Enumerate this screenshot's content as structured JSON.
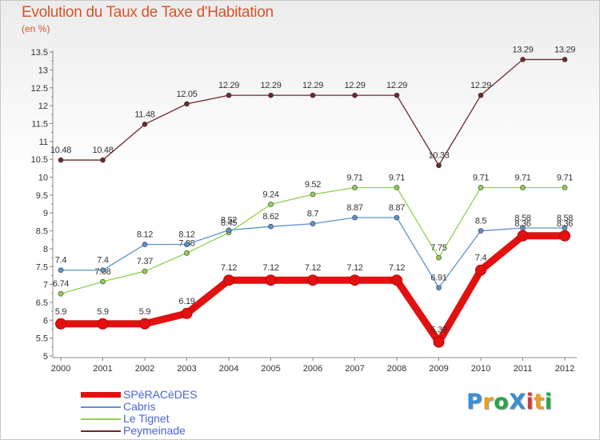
{
  "header": {
    "title": "Evolution du Taux de Taxe d'Habitation",
    "unit": "(en %)"
  },
  "logo": {
    "text": "ProXiti",
    "colors": [
      "#3a8fd4",
      "#e8a020",
      "#2aa44a",
      "#3a8fd4",
      "#d43a3a",
      "#e8a020",
      "#2aa44a"
    ]
  },
  "chart_data": {
    "type": "line",
    "title": "Evolution du Taux de Taxe d'Habitation",
    "ylabel": "(en %)",
    "xlabel": "",
    "x": [
      "2000",
      "2001",
      "2002",
      "2003",
      "2004",
      "2005",
      "2006",
      "2007",
      "2008",
      "2009",
      "2010",
      "2011",
      "2012"
    ],
    "ylim": [
      5,
      13.5
    ],
    "yticks": [
      "5",
      "5.5",
      "6",
      "6.5",
      "7",
      "7.5",
      "8",
      "8.5",
      "9",
      "9.5",
      "10",
      "10.5",
      "11",
      "11.5",
      "12",
      "12.5",
      "13",
      "13.5"
    ],
    "grid": false,
    "legend": "bottom-left",
    "series": [
      {
        "name": "SPéRACèDES",
        "color": "#e31010",
        "values": [
          5.9,
          5.9,
          5.9,
          6.19,
          7.12,
          7.12,
          7.12,
          7.12,
          7.12,
          5.39,
          7.4,
          8.36,
          8.36
        ],
        "labels": [
          "5.9",
          "5.9",
          "5.9",
          "6.19",
          "7.12",
          "7.12",
          "7.12",
          "7.12",
          "7.12",
          "5.39",
          "7.4",
          "8.36",
          "8.36"
        ]
      },
      {
        "name": "Cabris",
        "color": "#5b93cf",
        "values": [
          7.4,
          7.4,
          8.12,
          8.12,
          8.52,
          8.62,
          8.7,
          8.87,
          8.87,
          6.91,
          8.5,
          8.58,
          8.58
        ],
        "labels": [
          "7.4",
          "7.4",
          "8.12",
          "8.12",
          "8.52",
          "8.62",
          "8.7",
          "8.87",
          "8.87",
          "6.91",
          "8.5",
          "8.58",
          "8.58"
        ]
      },
      {
        "name": "Le Tignet",
        "color": "#8fd14f",
        "values": [
          6.74,
          7.08,
          7.37,
          7.88,
          8.45,
          9.24,
          9.52,
          9.71,
          9.71,
          7.75,
          9.71,
          9.71,
          9.71
        ],
        "labels": [
          "6.74",
          "7.08",
          "7.37",
          "7.88",
          "8.45",
          "9.24",
          "9.52",
          "9.71",
          "9.71",
          "7.75",
          "9.71",
          "9.71",
          "9.71"
        ]
      },
      {
        "name": "Peymeinade",
        "color": "#6e2a2a",
        "values": [
          10.48,
          10.48,
          11.48,
          12.05,
          12.29,
          12.29,
          12.29,
          12.29,
          12.29,
          10.33,
          12.29,
          13.29,
          13.29
        ],
        "labels": [
          "10.48",
          "10.48",
          "11.48",
          "12.05",
          "12.29",
          "12.29",
          "12.29",
          "12.29",
          "12.29",
          "10.33",
          "12.29",
          "13.29",
          "13.29"
        ]
      }
    ]
  }
}
